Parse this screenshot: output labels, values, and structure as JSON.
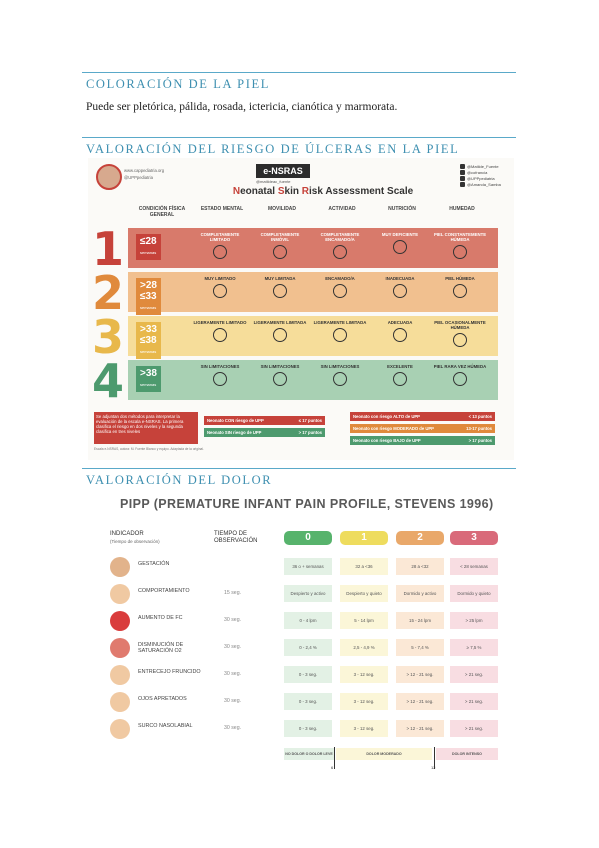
{
  "sections": {
    "coloracion_heading": "COLORACIÓN DE LA PIEL",
    "coloracion_text": "Puede ser pletórica, pálida, rosada, ictericia, cianótica y marmorata.",
    "ulceras_heading": "VALORACIÓN DEL RIESGO DE ÚLCERAS EN LA PIEL",
    "dolor_heading": "VALORACIÓN DEL DOLOR"
  },
  "nsras": {
    "handle1": "www.cappediatria.org",
    "handle2": "@UPPpediatria",
    "title": "e-NSRAS",
    "subtitle": "@matildeac_fuente",
    "full_title_n": "N",
    "full_title_1": "eonatal ",
    "full_title_s": "S",
    "full_title_2": "kin ",
    "full_title_r": "R",
    "full_title_3": "isk Assessment Scale",
    "social": [
      "@Matilde_Fuente",
      "@cofrancia",
      "@UPPpediatria",
      "@Amanda_Samba"
    ],
    "columns": [
      "CONDICIÓN FÍSICA GENERAL",
      "ESTADO MENTAL",
      "MOVILIDAD",
      "ACTIVIDAD",
      "NUTRICIÓN",
      "HUMEDAD"
    ],
    "rows": [
      {
        "num": "1",
        "color": "#c6423a",
        "band": "#d87a6b",
        "text": "#fff",
        "age_pre": "",
        "age_main": "≤28",
        "age_unit": "semanas",
        "cells": [
          "COMPLETAMENTE LIMITADO",
          "COMPLETAMENTE INMÓVIL",
          "COMPLETAMENTE ENCAMADO/A",
          "MUY DEFICIENTE",
          "PIEL CONSTANTEMENTE HÚMEDA"
        ]
      },
      {
        "num": "2",
        "color": "#e08a3c",
        "band": "#f1c08f",
        "text": "#333",
        "age_pre": ">28",
        "age_main": "≤33",
        "age_unit": "semanas",
        "cells": [
          "MUY LIMITADO",
          "MUY LIMITADA",
          "ENCAMADO/A",
          "INADECUADA",
          "PIEL HÚMEDA"
        ]
      },
      {
        "num": "3",
        "color": "#e8b84b",
        "band": "#f6dd9a",
        "text": "#333",
        "age_pre": ">33",
        "age_main": "≤38",
        "age_unit": "semanas",
        "cells": [
          "LIGERAMENTE LIMITADO",
          "LIGERAMENTE LIMITADA",
          "LIGERAMENTE LIMITADA",
          "ADECUADA",
          "PIEL OCASIONALMENTE HÚMEDA"
        ]
      },
      {
        "num": "4",
        "color": "#4d9a6e",
        "band": "#a8d0b3",
        "text": "#333",
        "age_pre": "",
        "age_main": ">38",
        "age_unit": "semanas",
        "cells": [
          "SIN LIMITACIONES",
          "SIN LIMITACIONES",
          "SIN LIMITACIONES",
          "EXCELENTE",
          "PIEL RARA VEZ HÚMEDA"
        ]
      }
    ],
    "footnote": "Se adjuntan dos métodos para interpretar la evaluación de la escala e-NSRAS. La primera clasifica el riesgo en dos niveles y la segunda clasifica en tres niveles",
    "risks_left": [
      {
        "label": "Neonato CON riesgo de UPP",
        "value": "≤ 17 puntos",
        "color": "#c6423a"
      },
      {
        "label": "Neonato SIN riesgo de UPP",
        "value": "> 17 puntos",
        "color": "#4d9a6e"
      }
    ],
    "risks_right": [
      {
        "label": "Neonato con riesgo ALTO de UPP",
        "value": "< 13 puntos",
        "color": "#c6423a"
      },
      {
        "label": "Neonato con riesgo MODERADO de UPP",
        "value": "13-17 puntos",
        "color": "#e08a3c"
      },
      {
        "label": "Neonato con riesgo BAJO de UPP",
        "value": "> 17 puntos",
        "color": "#4d9a6e"
      }
    ],
    "source": "Escala e-NSRAS, autora: M. Fuente Blanco y equipo. Adaptada de la original."
  },
  "pipp": {
    "title": "PIPP (PREMATURE INFANT PAIN PROFILE, STEVENS 1996)",
    "indicator_header": "INDICADOR",
    "indicator_sub": "(Tiempo de observación)",
    "time_header": "TIEMPO DE OBSERVACIÓN",
    "scores": [
      {
        "label": "0",
        "color": "#57b36c",
        "tint": "#e3f1e5"
      },
      {
        "label": "1",
        "color": "#eedc5e",
        "tint": "#fbf6d8"
      },
      {
        "label": "2",
        "color": "#e9a86a",
        "tint": "#fbe8d6"
      },
      {
        "label": "3",
        "color": "#d96a7a",
        "tint": "#f8dde2"
      }
    ],
    "rows": [
      {
        "name": "GESTACIÓN",
        "time": "",
        "icon": "#e2b38b",
        "cells": [
          "36 o + semanas",
          "32 a <36",
          "28 a <32",
          "< 28 semanas"
        ]
      },
      {
        "name": "COMPORTAMIENTO",
        "time": "15 seg.",
        "icon": "#f0c9a2",
        "cells": [
          "Despierto y activo",
          "Despierto y quieto",
          "Dormido y activo",
          "Dormido y quieto"
        ]
      },
      {
        "name": "AUMENTO DE FC",
        "time": "30 seg.",
        "icon": "#d93c3c",
        "cells": [
          "0 - 4 lpm",
          "5 - 14 lpm",
          "15 - 24 lpm",
          "> 25 lpm"
        ]
      },
      {
        "name": "DISMINUCIÓN DE SATURACIÓN O2",
        "time": "30 seg.",
        "icon": "#e07a6e",
        "cells": [
          "0 - 2,4 %",
          "2,5 - 4,9 %",
          "5 - 7,4 %",
          "≥ 7,5 %"
        ]
      },
      {
        "name": "ENTRECEJO FRUNCIDO",
        "time": "30 seg.",
        "icon": "#f0c9a2",
        "cells": [
          "0 - 3 seg.",
          "3 - 12 seg.",
          "> 12 - 21 seg.",
          "> 21 seg."
        ]
      },
      {
        "name": "OJOS APRETADOS",
        "time": "30 seg.",
        "icon": "#f0c9a2",
        "cells": [
          "0 - 3 seg.",
          "3 - 12 seg.",
          "> 12 - 21 seg.",
          "> 21 seg."
        ]
      },
      {
        "name": "SURCO NASOLABIAL",
        "time": "30 seg.",
        "icon": "#f0c9a2",
        "cells": [
          "0 - 3 seg.",
          "3 - 12 seg.",
          "> 12 - 21 seg.",
          "> 21 seg."
        ]
      }
    ],
    "bars": [
      {
        "label": "NO DOLOR O DOLOR LEVE",
        "color": "#e3f1e5"
      },
      {
        "label": "DOLOR MODERADO",
        "color": "#fbf6d8"
      },
      {
        "label": "DOLOR INTENSO",
        "color": "#f8dde2"
      }
    ],
    "ticks": [
      "6",
      "12"
    ]
  }
}
